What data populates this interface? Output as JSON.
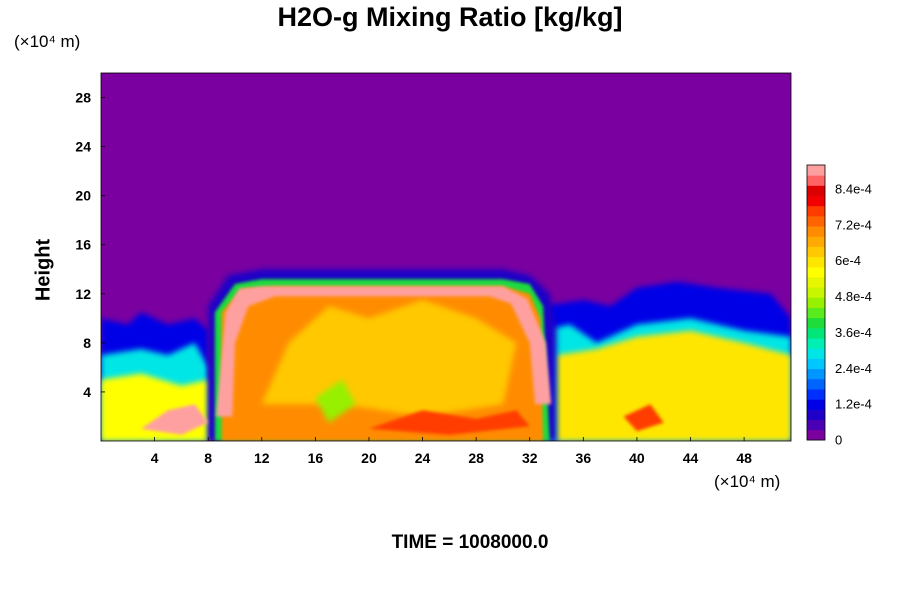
{
  "chart_data": {
    "type": "heatmap",
    "title": "H2O-g Mixing Ratio [kg/kg]",
    "ylabel": "Height",
    "x_unit": "(×10⁴ m)",
    "y_unit": "(×10⁴ m)",
    "footer": "TIME = 1008000.0",
    "xlim": [
      0,
      51.5
    ],
    "ylim": [
      0,
      30
    ],
    "x_ticks": [
      4,
      8,
      12,
      16,
      20,
      24,
      28,
      32,
      36,
      40,
      44,
      48
    ],
    "y_ticks": [
      4,
      8,
      12,
      16,
      20,
      24,
      28
    ],
    "colorbar": {
      "range": [
        0,
        0.00092
      ],
      "tick_values": [
        0,
        0.00012,
        0.00024,
        0.00036,
        0.00048,
        0.0006,
        0.00072,
        0.00084
      ],
      "tick_labels": [
        "0",
        "1.2e-4",
        "2.4e-4",
        "3.6e-4",
        "4.8e-4",
        "6e-4",
        "7.2e-4",
        "8.4e-4"
      ],
      "colors": [
        "#7a00a0",
        "#4b00b4",
        "#1e00c8",
        "#0000e6",
        "#0030ff",
        "#0064ff",
        "#0096ff",
        "#00c8ff",
        "#00e6e6",
        "#00f0b4",
        "#00e678",
        "#1edc3c",
        "#5aeb1e",
        "#96f000",
        "#c8f500",
        "#e6f500",
        "#ffff00",
        "#ffe600",
        "#ffc800",
        "#ffaa00",
        "#ff8c00",
        "#ff6400",
        "#ff3c00",
        "#f00000",
        "#dc0000",
        "#ff6464",
        "#ffa0a0"
      ]
    },
    "regions": {
      "upper_background": 0,
      "storm_core": {
        "x": [
          8,
          34
        ],
        "top": 13.5,
        "value": 0.0007
      },
      "left_low_layer": {
        "x": [
          0,
          8
        ],
        "top": 10,
        "value": 0.00035
      },
      "right_low_layer": {
        "x": [
          34,
          51.5
        ],
        "top": 12,
        "value": 0.0006
      },
      "saturated_rim_value": 0.0009
    }
  }
}
